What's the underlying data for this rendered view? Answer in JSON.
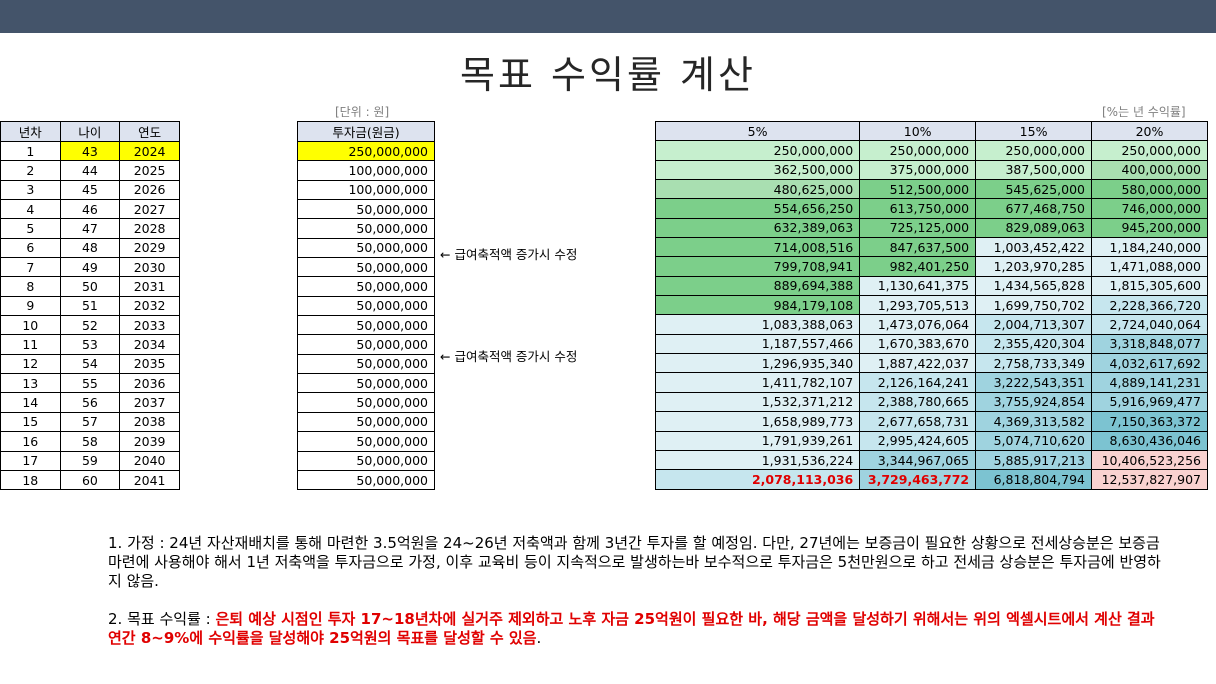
{
  "title": "목표 수익률 계산",
  "unit_left": "[단위 : 원]",
  "unit_right": "[%는 년 수익률]",
  "headers": {
    "year_no": "년차",
    "age": "나이",
    "year": "연도",
    "invest": "투자금(원금)"
  },
  "rate_headers": [
    "5%",
    "10%",
    "15%",
    "20%"
  ],
  "rows": [
    {
      "n": "1",
      "age": "43",
      "year": "2024",
      "inv": "250,000,000",
      "r": [
        "250,000,000",
        "250,000,000",
        "250,000,000",
        "250,000,000"
      ]
    },
    {
      "n": "2",
      "age": "44",
      "year": "2025",
      "inv": "100,000,000",
      "r": [
        "362,500,000",
        "375,000,000",
        "387,500,000",
        "400,000,000"
      ]
    },
    {
      "n": "3",
      "age": "45",
      "year": "2026",
      "inv": "100,000,000",
      "r": [
        "480,625,000",
        "512,500,000",
        "545,625,000",
        "580,000,000"
      ]
    },
    {
      "n": "4",
      "age": "46",
      "year": "2027",
      "inv": "50,000,000",
      "r": [
        "554,656,250",
        "613,750,000",
        "677,468,750",
        "746,000,000"
      ]
    },
    {
      "n": "5",
      "age": "47",
      "year": "2028",
      "inv": "50,000,000",
      "r": [
        "632,389,063",
        "725,125,000",
        "829,089,063",
        "945,200,000"
      ]
    },
    {
      "n": "6",
      "age": "48",
      "year": "2029",
      "inv": "50,000,000",
      "r": [
        "714,008,516",
        "847,637,500",
        "1,003,452,422",
        "1,184,240,000"
      ]
    },
    {
      "n": "7",
      "age": "49",
      "year": "2030",
      "inv": "50,000,000",
      "r": [
        "799,708,941",
        "982,401,250",
        "1,203,970,285",
        "1,471,088,000"
      ]
    },
    {
      "n": "8",
      "age": "50",
      "year": "2031",
      "inv": "50,000,000",
      "r": [
        "889,694,388",
        "1,130,641,375",
        "1,434,565,828",
        "1,815,305,600"
      ]
    },
    {
      "n": "9",
      "age": "51",
      "year": "2032",
      "inv": "50,000,000",
      "r": [
        "984,179,108",
        "1,293,705,513",
        "1,699,750,702",
        "2,228,366,720"
      ]
    },
    {
      "n": "10",
      "age": "52",
      "year": "2033",
      "inv": "50,000,000",
      "r": [
        "1,083,388,063",
        "1,473,076,064",
        "2,004,713,307",
        "2,724,040,064"
      ]
    },
    {
      "n": "11",
      "age": "53",
      "year": "2034",
      "inv": "50,000,000",
      "r": [
        "1,187,557,466",
        "1,670,383,670",
        "2,355,420,304",
        "3,318,848,077"
      ]
    },
    {
      "n": "12",
      "age": "54",
      "year": "2035",
      "inv": "50,000,000",
      "r": [
        "1,296,935,340",
        "1,887,422,037",
        "2,758,733,349",
        "4,032,617,692"
      ]
    },
    {
      "n": "13",
      "age": "55",
      "year": "2036",
      "inv": "50,000,000",
      "r": [
        "1,411,782,107",
        "2,126,164,241",
        "3,222,543,351",
        "4,889,141,231"
      ]
    },
    {
      "n": "14",
      "age": "56",
      "year": "2037",
      "inv": "50,000,000",
      "r": [
        "1,532,371,212",
        "2,388,780,665",
        "3,755,924,854",
        "5,916,969,477"
      ]
    },
    {
      "n": "15",
      "age": "57",
      "year": "2038",
      "inv": "50,000,000",
      "r": [
        "1,658,989,773",
        "2,677,658,731",
        "4,369,313,582",
        "7,150,363,372"
      ]
    },
    {
      "n": "16",
      "age": "58",
      "year": "2039",
      "inv": "50,000,000",
      "r": [
        "1,791,939,261",
        "2,995,424,605",
        "5,074,710,620",
        "8,630,436,046"
      ]
    },
    {
      "n": "17",
      "age": "59",
      "year": "2040",
      "inv": "50,000,000",
      "r": [
        "1,931,536,224",
        "3,344,967,065",
        "5,885,917,213",
        "10,406,523,256"
      ]
    },
    {
      "n": "18",
      "age": "60",
      "year": "2041",
      "inv": "50,000,000",
      "r": [
        "2,078,113,036",
        "3,729,463,772",
        "6,818,804,794",
        "12,537,827,907"
      ]
    }
  ],
  "notes": [
    "← 급여축적액 증가시 수정",
    "← 급여축적액 증가시 수정"
  ],
  "para1": "1. 가정 : 24년 자산재배치를 통해 마련한 3.5억원을 24~26년 저축액과 함께 3년간 투자를 할 예정임. 다만, 27년에는 보증금이 필요한 상황으로 전세상승분은 보증금 마련에 사용해야 해서 1년 저축액을 투자금으로 가정, 이후 교육비 등이 지속적으로 발생하는바 보수적으로 투자금은 5천만원으로 하고 전세금 상승분은 투자금에 반영하지 않음.",
  "para2_prefix": "2. 목표 수익률 : ",
  "para2_red": "은퇴 예상 시점인 투자 17~18년차에 실거주 제외하고 노후 자금 25억원이 필요한 바,  해당 금액을 달성하기 위해서는 위의 엑셀시트에서 계산 결과 연간 8~9%에 수익률을 달성해야 25억원의 목표를 달성할 수 있음",
  "para2_suffix": ".",
  "colors": {
    "topbar": "#44546a",
    "highlight": "#ffff00",
    "header": "#dde3ef",
    "red": "#e00000"
  }
}
